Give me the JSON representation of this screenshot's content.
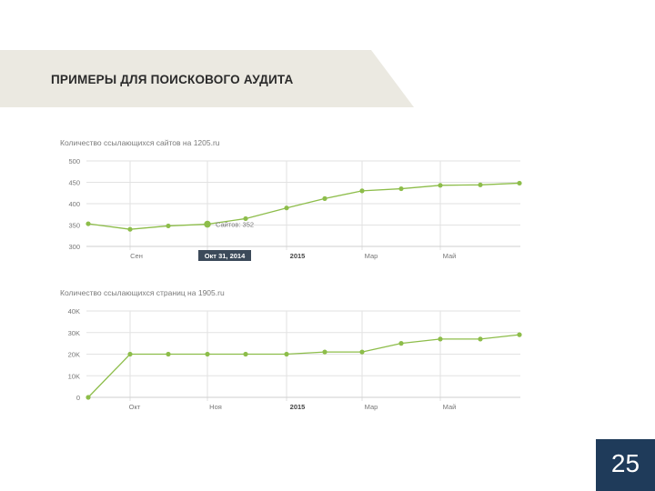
{
  "slide": {
    "title": "ПРИМЕРЫ ДЛЯ ПОИСКОВОГО АУДИТА",
    "page_number": "25",
    "colors": {
      "band": "#ebe9e1",
      "accent": "#1f3b5a",
      "line": "#8dbd4a",
      "grid": "#e2e2e2"
    }
  },
  "chart_data": [
    {
      "type": "line",
      "title": "Количество ссылающихся сайтов на 1205.ru",
      "ylim": [
        300,
        500
      ],
      "y_ticks": [
        "500",
        "450",
        "400",
        "350",
        "300"
      ],
      "x_ticks": [
        "Сен",
        "Окт 31, 2014",
        "2015",
        "Мар",
        "Май"
      ],
      "series": [
        {
          "values": [
            353,
            340,
            348,
            352,
            365,
            390,
            412,
            430,
            435,
            443,
            444,
            448
          ]
        }
      ],
      "tooltip": {
        "date": "Окт 31, 2014",
        "label": "Сайтов: 352"
      }
    },
    {
      "type": "line",
      "title": "Количество ссылающихся страниц на 1905.ru",
      "ylim": [
        0,
        40
      ],
      "y_ticks": [
        "40K",
        "30K",
        "20K",
        "10K",
        "0"
      ],
      "x_ticks": [
        "Окт",
        "Ноя",
        "2015",
        "Мар",
        "Май"
      ],
      "series": [
        {
          "values": [
            0,
            20,
            20,
            20,
            20,
            20,
            21,
            21,
            25,
            27,
            27,
            29
          ]
        }
      ]
    }
  ]
}
